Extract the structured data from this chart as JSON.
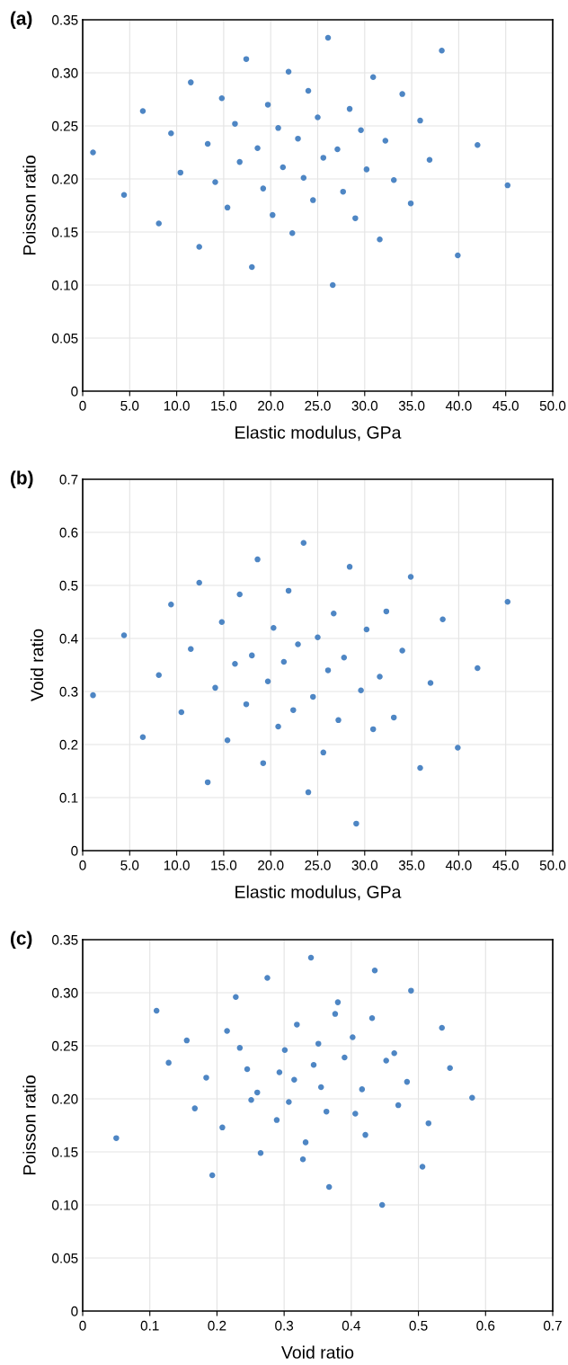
{
  "chart_data": [
    {
      "type": "scatter",
      "title": "(a)",
      "xlabel": "Elastic modulus, GPa",
      "ylabel": "Poisson ratio",
      "marker": "circle",
      "grid": true,
      "legend": false,
      "xlim": [
        0,
        50
      ],
      "xticks": [
        0,
        {
          "value": 5,
          "label": "5.0"
        },
        {
          "value": 10,
          "label": "10.0"
        },
        {
          "value": 15,
          "label": "15.0"
        },
        {
          "value": 20,
          "label": "20.0"
        },
        {
          "value": 25,
          "label": "25.0"
        },
        {
          "value": 30,
          "label": "30.0"
        },
        {
          "value": 35,
          "label": "35.0"
        },
        {
          "value": 40,
          "label": "40.0"
        },
        {
          "value": 45,
          "label": "45.0"
        },
        {
          "value": 50,
          "label": "50.0"
        }
      ],
      "ylim": [
        0,
        0.35
      ],
      "yticks": [
        0,
        0.05,
        {
          "value": 0.1,
          "label": "0.10"
        },
        0.15,
        {
          "value": 0.2,
          "label": "0.20"
        },
        0.25,
        {
          "value": 0.3,
          "label": "0.30"
        },
        0.35
      ],
      "series": [
        {
          "color": "#4e86c4",
          "x": [
            1.1,
            4.4,
            6.4,
            8.1,
            9.4,
            10.4,
            11.5,
            12.4,
            13.3,
            14.1,
            14.8,
            15.4,
            16.2,
            16.7,
            17.4,
            18.0,
            18.6,
            19.2,
            19.7,
            20.2,
            20.8,
            21.3,
            21.9,
            22.3,
            22.9,
            23.5,
            24.0,
            24.5,
            25.0,
            25.6,
            26.1,
            26.6,
            27.1,
            27.7,
            28.4,
            29.0,
            29.6,
            30.2,
            30.9,
            31.6,
            32.2,
            33.1,
            34.0,
            34.9,
            35.9,
            36.9,
            38.2,
            39.9,
            42.0,
            45.2
          ],
          "values": [
            0.225,
            0.185,
            0.264,
            0.158,
            0.243,
            0.206,
            0.291,
            0.136,
            0.233,
            0.197,
            0.276,
            0.173,
            0.252,
            0.216,
            0.313,
            0.117,
            0.229,
            0.191,
            0.27,
            0.166,
            0.248,
            0.211,
            0.301,
            0.149,
            0.238,
            0.201,
            0.283,
            0.18,
            0.258,
            0.22,
            0.333,
            0.1,
            0.228,
            0.188,
            0.266,
            0.163,
            0.246,
            0.209,
            0.296,
            0.143,
            0.236,
            0.199,
            0.28,
            0.177,
            0.255,
            0.218,
            0.321,
            0.128,
            0.232,
            0.194
          ]
        }
      ]
    },
    {
      "type": "scatter",
      "title": "(b)",
      "xlabel": "Elastic modulus, GPa",
      "ylabel": "Void ratio",
      "marker": "circle",
      "grid": true,
      "legend": false,
      "xlim": [
        0,
        50
      ],
      "xticks": [
        0,
        {
          "value": 5,
          "label": "5.0"
        },
        {
          "value": 10,
          "label": "10.0"
        },
        {
          "value": 15,
          "label": "15.0"
        },
        {
          "value": 20,
          "label": "20.0"
        },
        {
          "value": 25,
          "label": "25.0"
        },
        {
          "value": 30,
          "label": "30.0"
        },
        {
          "value": 35,
          "label": "35.0"
        },
        {
          "value": 40,
          "label": "40.0"
        },
        {
          "value": 45,
          "label": "45.0"
        },
        {
          "value": 50,
          "label": "50.0"
        }
      ],
      "ylim": [
        0,
        0.7
      ],
      "yticks": [
        0,
        0.1,
        0.2,
        0.3,
        0.4,
        0.5,
        0.6,
        0.7
      ],
      "series": [
        {
          "color": "#4e86c4",
          "x": [
            1.1,
            4.4,
            6.4,
            8.1,
            9.4,
            10.5,
            11.5,
            12.4,
            13.3,
            14.1,
            14.8,
            15.4,
            16.2,
            16.7,
            17.4,
            18.0,
            18.6,
            19.2,
            19.7,
            20.3,
            20.8,
            21.4,
            21.9,
            22.4,
            22.9,
            23.5,
            24.0,
            24.5,
            25.0,
            25.6,
            26.1,
            26.7,
            27.2,
            27.8,
            28.4,
            29.1,
            29.6,
            30.2,
            30.9,
            31.6,
            32.3,
            33.1,
            34.0,
            34.9,
            35.9,
            37.0,
            38.3,
            39.9,
            42.0,
            45.2
          ],
          "values": [
            0.293,
            0.406,
            0.214,
            0.331,
            0.464,
            0.261,
            0.38,
            0.505,
            0.129,
            0.307,
            0.431,
            0.208,
            0.352,
            0.483,
            0.276,
            0.368,
            0.549,
            0.165,
            0.319,
            0.42,
            0.234,
            0.356,
            0.49,
            0.265,
            0.389,
            0.58,
            0.11,
            0.29,
            0.402,
            0.185,
            0.34,
            0.447,
            0.246,
            0.364,
            0.535,
            0.051,
            0.302,
            0.417,
            0.229,
            0.328,
            0.451,
            0.251,
            0.377,
            0.516,
            0.156,
            0.316,
            0.436,
            0.194,
            0.344,
            0.469
          ]
        }
      ]
    },
    {
      "type": "scatter",
      "title": "(c)",
      "xlabel": "Void ratio",
      "ylabel": "Poisson ratio",
      "marker": "circle",
      "grid": true,
      "legend": false,
      "xlim": [
        0,
        0.7
      ],
      "xticks": [
        0,
        0.1,
        0.2,
        0.3,
        0.4,
        0.5,
        0.6,
        0.7
      ],
      "ylim": [
        0,
        0.35
      ],
      "yticks": [
        0,
        0.05,
        {
          "value": 0.1,
          "label": "0.10"
        },
        0.15,
        {
          "value": 0.2,
          "label": "0.20"
        },
        0.25,
        {
          "value": 0.3,
          "label": "0.30"
        },
        0.35
      ],
      "series": [
        {
          "color": "#4e86c4",
          "x": [
            0.05,
            0.11,
            0.128,
            0.155,
            0.167,
            0.184,
            0.193,
            0.208,
            0.215,
            0.228,
            0.234,
            0.245,
            0.251,
            0.26,
            0.265,
            0.275,
            0.289,
            0.293,
            0.301,
            0.307,
            0.315,
            0.319,
            0.328,
            0.332,
            0.34,
            0.344,
            0.351,
            0.355,
            0.363,
            0.367,
            0.376,
            0.38,
            0.39,
            0.402,
            0.406,
            0.416,
            0.421,
            0.431,
            0.435,
            0.446,
            0.452,
            0.464,
            0.47,
            0.483,
            0.489,
            0.506,
            0.515,
            0.535,
            0.547,
            0.58
          ],
          "values": [
            0.163,
            0.283,
            0.234,
            0.255,
            0.191,
            0.22,
            0.128,
            0.173,
            0.264,
            0.296,
            0.248,
            0.228,
            0.199,
            0.206,
            0.149,
            0.314,
            0.18,
            0.225,
            0.246,
            0.197,
            0.218,
            0.27,
            0.143,
            0.159,
            0.333,
            0.232,
            0.252,
            0.211,
            0.188,
            0.117,
            0.28,
            0.291,
            0.239,
            0.258,
            0.186,
            0.209,
            0.166,
            0.276,
            0.321,
            0.1,
            0.236,
            0.243,
            0.194,
            0.216,
            0.302,
            0.136,
            0.177,
            0.267,
            0.229,
            0.201
          ]
        }
      ]
    }
  ]
}
